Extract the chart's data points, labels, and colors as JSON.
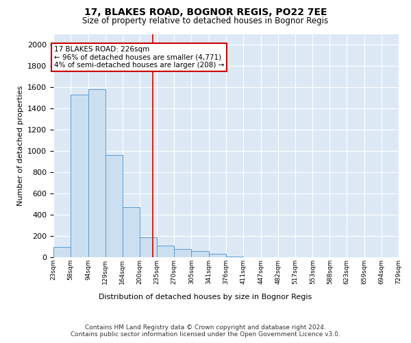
{
  "title_line1": "17, BLAKES ROAD, BOGNOR REGIS, PO22 7EE",
  "title_line2": "Size of property relative to detached houses in Bognor Regis",
  "xlabel": "Distribution of detached houses by size in Bognor Regis",
  "ylabel": "Number of detached properties",
  "footer_line1": "Contains HM Land Registry data © Crown copyright and database right 2024.",
  "footer_line2": "Contains public sector information licensed under the Open Government Licence v3.0.",
  "annotation_line1": "17 BLAKES ROAD: 226sqm",
  "annotation_line2": "← 96% of detached houses are smaller (4,771)",
  "annotation_line3": "4% of semi-detached houses are larger (208) →",
  "bar_color": "#ccdff0",
  "bar_edge_color": "#5b9bd5",
  "ref_line_color": "#cc0000",
  "ref_line_x": 226,
  "plot_bg_color": "#dce9f5",
  "ylim": [
    0,
    2100
  ],
  "yticks": [
    0,
    200,
    400,
    600,
    800,
    1000,
    1200,
    1400,
    1600,
    1800,
    2000
  ],
  "bin_edges": [
    23,
    58,
    94,
    129,
    164,
    200,
    235,
    270,
    305,
    341,
    376,
    411,
    447,
    482,
    517,
    553,
    588,
    623,
    659,
    694,
    729
  ],
  "bar_heights": [
    100,
    1530,
    1580,
    960,
    470,
    190,
    110,
    80,
    55,
    30,
    5,
    0,
    0,
    0,
    0,
    0,
    0,
    0,
    0,
    0
  ]
}
